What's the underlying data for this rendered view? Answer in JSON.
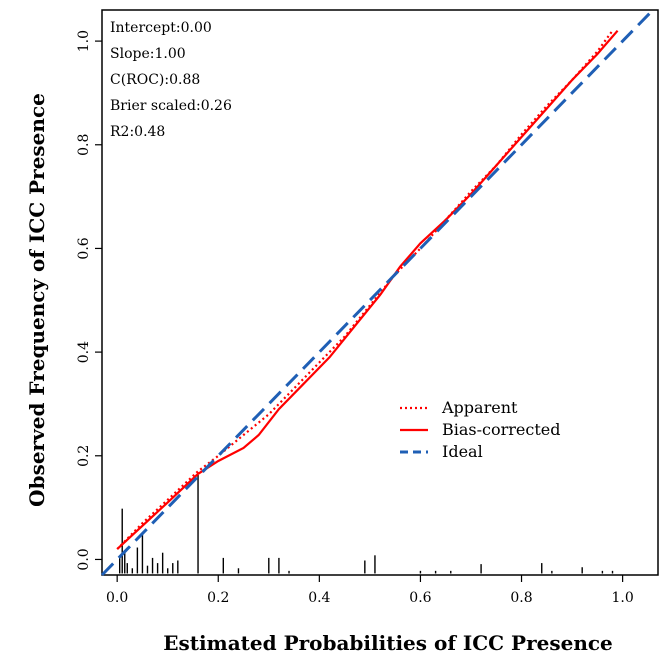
{
  "chart_data": {
    "type": "line",
    "xlabel": "Estimated Probabilities of ICC Presence",
    "ylabel": "Observed Frequency of ICC Presence",
    "xlim": [
      -0.03,
      1.07
    ],
    "ylim": [
      -0.03,
      1.06
    ],
    "xticks": [
      "0.0",
      "0.2",
      "0.4",
      "0.6",
      "0.8",
      "1.0"
    ],
    "yticks": [
      "0.0",
      "0.2",
      "0.4",
      "0.6",
      "0.8",
      "1.0"
    ],
    "stats": [
      "Intercept:0.00",
      "Slope:1.00",
      "C(ROC):0.88",
      "Brier scaled:0.26",
      "R2:0.48"
    ],
    "legend_position": "lower-right",
    "series": [
      {
        "name": "Apparent",
        "style": "dotted",
        "color": "#ff0000",
        "x": [
          0.0,
          0.05,
          0.1,
          0.16,
          0.2,
          0.25,
          0.3,
          0.35,
          0.4,
          0.45,
          0.5,
          0.55,
          0.6,
          0.65,
          0.7,
          0.75,
          0.8,
          0.85,
          0.9,
          0.95,
          0.98
        ],
        "y": [
          0.02,
          0.07,
          0.115,
          0.17,
          0.2,
          0.24,
          0.28,
          0.33,
          0.38,
          0.43,
          0.49,
          0.55,
          0.6,
          0.655,
          0.71,
          0.76,
          0.82,
          0.875,
          0.925,
          0.98,
          1.02
        ]
      },
      {
        "name": "Bias-corrected",
        "style": "solid",
        "color": "#ff0000",
        "x": [
          0.0,
          0.05,
          0.1,
          0.16,
          0.2,
          0.25,
          0.28,
          0.32,
          0.37,
          0.42,
          0.47,
          0.52,
          0.56,
          0.6,
          0.65,
          0.7,
          0.75,
          0.8,
          0.85,
          0.9,
          0.95,
          0.99
        ],
        "y": [
          0.02,
          0.065,
          0.11,
          0.165,
          0.19,
          0.215,
          0.24,
          0.29,
          0.34,
          0.39,
          0.45,
          0.51,
          0.565,
          0.61,
          0.655,
          0.705,
          0.76,
          0.815,
          0.87,
          0.925,
          0.975,
          1.02
        ]
      },
      {
        "name": "Ideal",
        "style": "dashed",
        "color": "#1f5fb5",
        "x": [
          -0.03,
          1.06
        ],
        "y": [
          -0.03,
          1.06
        ]
      }
    ],
    "histogram": {
      "x": [
        0.005,
        0.01,
        0.015,
        0.02,
        0.03,
        0.04,
        0.05,
        0.06,
        0.07,
        0.08,
        0.09,
        0.1,
        0.11,
        0.12,
        0.16,
        0.21,
        0.24,
        0.3,
        0.32,
        0.34,
        0.49,
        0.51,
        0.6,
        0.63,
        0.66,
        0.72,
        0.84,
        0.86,
        0.92,
        0.96,
        0.98
      ],
      "y": [
        0.03,
        0.125,
        0.045,
        0.02,
        0.01,
        0.05,
        0.075,
        0.015,
        0.03,
        0.02,
        0.04,
        0.01,
        0.02,
        0.025,
        0.19,
        0.03,
        0.01,
        0.03,
        0.03,
        0.005,
        0.025,
        0.035,
        0.005,
        0.005,
        0.005,
        0.018,
        0.02,
        0.005,
        0.012,
        0.005,
        0.005
      ]
    }
  }
}
